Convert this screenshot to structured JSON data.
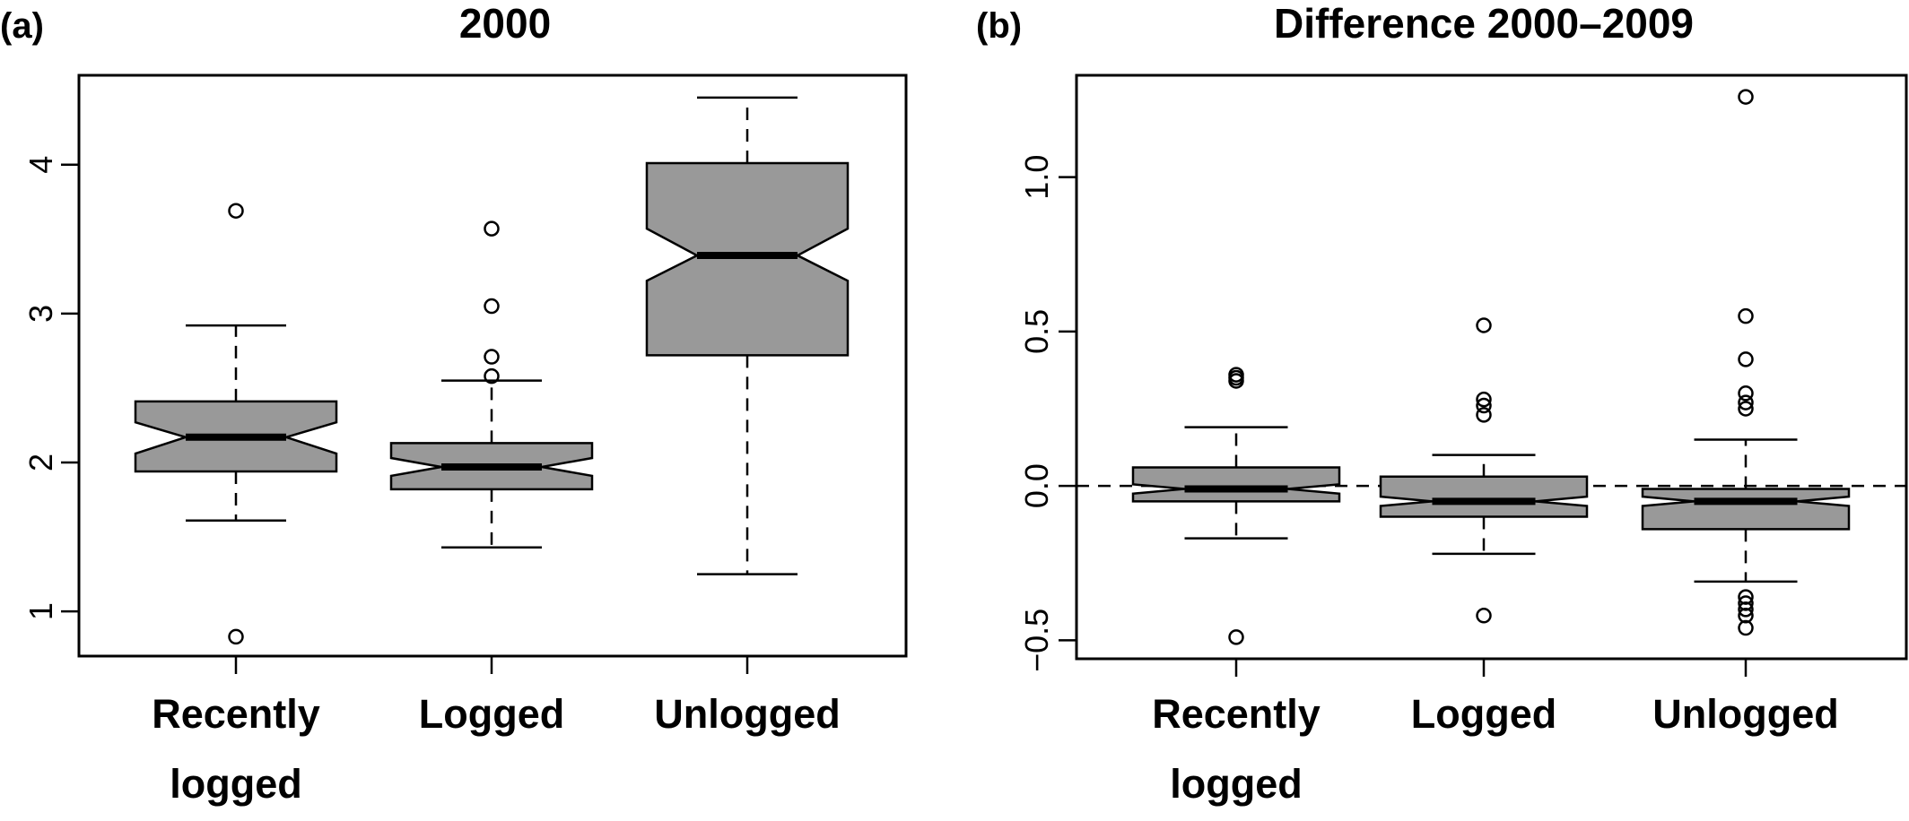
{
  "figure": {
    "panels": [
      {
        "label": "(a)",
        "title": "2000"
      },
      {
        "label": "(b)",
        "title": "Difference 2000–2009"
      }
    ]
  },
  "chart_data": [
    {
      "type": "boxplot",
      "panel_label": "(a)",
      "title": "2000",
      "notched": true,
      "box_color": "#999999",
      "categories": [
        [
          "Recently",
          "logged"
        ],
        [
          "Logged"
        ],
        [
          "Unlogged"
        ]
      ],
      "ylim": [
        0.7,
        4.6
      ],
      "yticks": [
        1,
        2,
        3,
        4
      ],
      "ytick_labels": [
        "1",
        "2",
        "3",
        "4"
      ],
      "boxes": [
        {
          "whisker_low": 1.61,
          "q1": 1.94,
          "notch_low": 2.06,
          "median": 2.17,
          "notch_high": 2.27,
          "q3": 2.41,
          "whisker_high": 2.92,
          "outliers": [
            3.69,
            0.83
          ]
        },
        {
          "whisker_low": 1.43,
          "q1": 1.82,
          "notch_low": 1.91,
          "median": 1.97,
          "notch_high": 2.03,
          "q3": 2.13,
          "whisker_high": 2.55,
          "outliers": [
            3.57,
            3.05,
            2.71,
            2.58
          ]
        },
        {
          "whisker_low": 1.25,
          "q1": 2.72,
          "notch_low": 3.22,
          "median": 3.39,
          "notch_high": 3.57,
          "q3": 4.01,
          "whisker_high": 4.45,
          "outliers": []
        }
      ],
      "xlabel": "",
      "ylabel": ""
    },
    {
      "type": "boxplot",
      "panel_label": "(b)",
      "title": "Difference 2000–2009",
      "notched": true,
      "box_color": "#999999",
      "reference_line": 0.0,
      "categories": [
        [
          "Recently",
          "logged"
        ],
        [
          "Logged"
        ],
        [
          "Unlogged"
        ]
      ],
      "ylim": [
        -0.56,
        1.33
      ],
      "yticks": [
        -0.5,
        0.0,
        0.5,
        1.0
      ],
      "ytick_labels": [
        "−0.5",
        "0.0",
        "0.5",
        "1.0"
      ],
      "boxes": [
        {
          "whisker_low": -0.17,
          "q1": -0.05,
          "notch_low": -0.025,
          "median": -0.01,
          "notch_high": 0.005,
          "q3": 0.06,
          "whisker_high": 0.19,
          "outliers": [
            0.36,
            0.35,
            0.34,
            -0.49
          ]
        },
        {
          "whisker_low": -0.22,
          "q1": -0.1,
          "notch_low": -0.065,
          "median": -0.05,
          "notch_high": -0.035,
          "q3": 0.03,
          "whisker_high": 0.1,
          "outliers": [
            0.52,
            0.28,
            0.26,
            0.23,
            -0.42
          ]
        },
        {
          "whisker_low": -0.31,
          "q1": -0.14,
          "notch_low": -0.065,
          "median": -0.05,
          "notch_high": -0.035,
          "q3": -0.01,
          "whisker_high": 0.15,
          "outliers": [
            1.26,
            0.55,
            0.41,
            0.3,
            0.27,
            0.25,
            -0.36,
            -0.38,
            -0.4,
            -0.42,
            -0.46
          ]
        }
      ],
      "xlabel": "",
      "ylabel": ""
    }
  ]
}
